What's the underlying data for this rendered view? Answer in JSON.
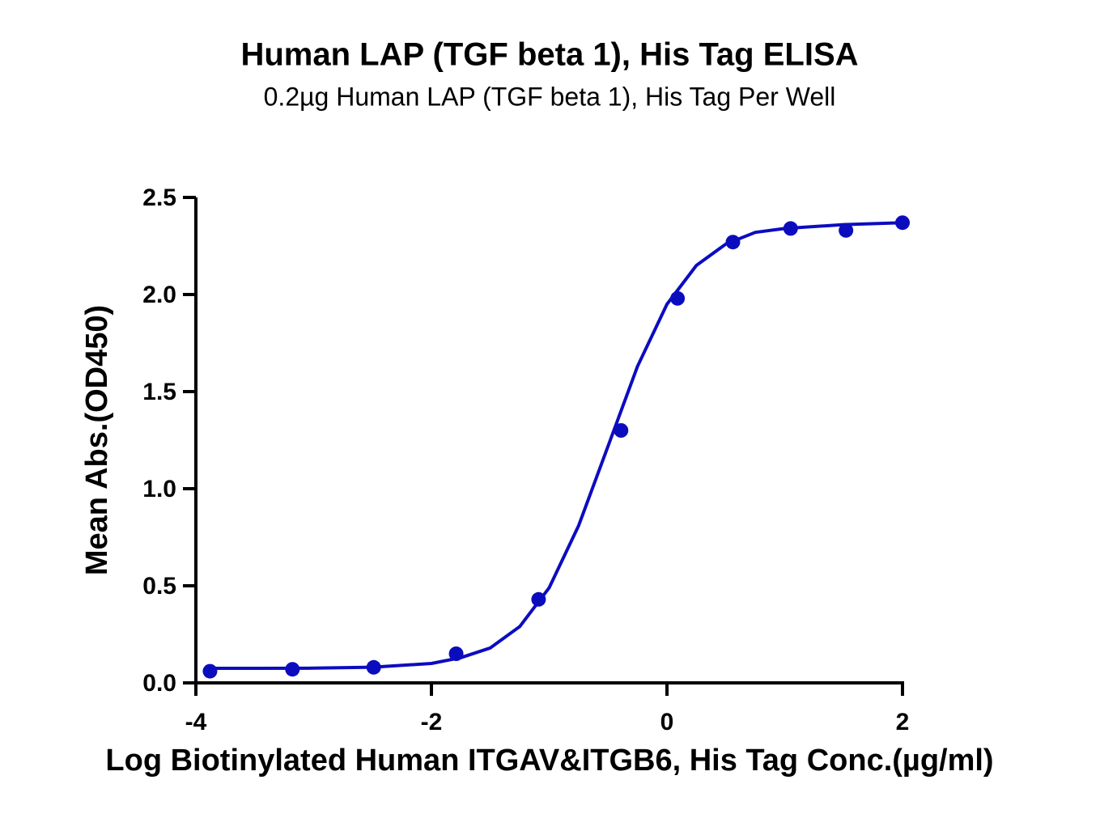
{
  "chart_data": {
    "type": "scatter",
    "title": "Human LAP (TGF beta 1), His Tag ELISA",
    "subtitle": "0.2µg Human LAP (TGF beta 1), His Tag Per Well",
    "x_label": "Log Biotinylated Human ITGAV&ITGB6, His Tag Conc.(µg/ml)",
    "y_label": "Mean Abs.(OD450)",
    "x": [
      -3.88,
      -3.18,
      -2.49,
      -1.79,
      -1.09,
      -0.39,
      0.09,
      0.56,
      1.05,
      1.52,
      2.0
    ],
    "values": [
      0.06,
      0.07,
      0.08,
      0.15,
      0.43,
      1.3,
      1.98,
      2.27,
      2.34,
      2.33,
      2.37
    ],
    "fit_x": [
      -3.9,
      -3.5,
      -3,
      -2.5,
      -2,
      -1.75,
      -1.5,
      -1.25,
      -1,
      -0.75,
      -0.5,
      -0.25,
      0,
      0.25,
      0.5,
      0.75,
      1,
      1.5,
      2
    ],
    "fit_values": [
      0.075,
      0.075,
      0.076,
      0.081,
      0.1,
      0.13,
      0.18,
      0.29,
      0.49,
      0.81,
      1.22,
      1.63,
      1.95,
      2.15,
      2.26,
      2.32,
      2.34,
      2.36,
      2.37
    ],
    "color": "#0c0cbf",
    "xlim": [
      -4,
      2
    ],
    "xticks": [
      -4,
      -2,
      0,
      2
    ],
    "ylim": [
      0,
      2.5
    ],
    "yticks": [
      {
        "value": 0,
        "label": "0.0"
      },
      0.5,
      {
        "value": 1,
        "label": "1.0"
      },
      1.5,
      {
        "value": 2,
        "label": "2.0"
      },
      2.5
    ]
  }
}
